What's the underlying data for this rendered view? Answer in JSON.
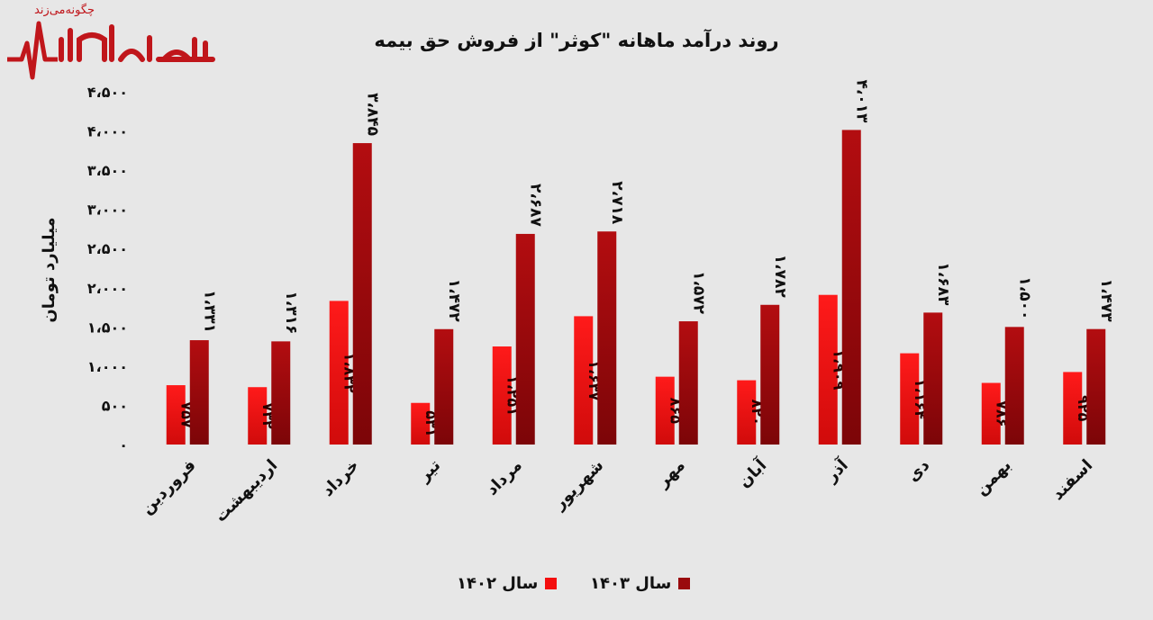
{
  "watermark": {
    "brand": "بورس بازار",
    "caption": "چگونه‌می‌زند"
  },
  "chart_data": {
    "type": "bar",
    "title": "روند درآمد ماهانه \"کوثر\" از فروش حق بیمه",
    "ylabel": "میلیارد تومان",
    "xlabel": "",
    "ylim": [
      0,
      4500
    ],
    "yticks": [
      0,
      500,
      1000,
      1500,
      2000,
      2500,
      3000,
      3500,
      4000,
      4500
    ],
    "ytick_labels": [
      "۰",
      "۵۰۰",
      "۱،۰۰۰",
      "۱،۵۰۰",
      "۲،۰۰۰",
      "۲،۵۰۰",
      "۳،۰۰۰",
      "۳،۵۰۰",
      "۴،۰۰۰",
      "۴،۵۰۰"
    ],
    "grid": false,
    "legend_position": "bottom",
    "categories": [
      "فروردین",
      "اردیبهشت",
      "خرداد",
      "تیر",
      "مرداد",
      "شهریور",
      "مهر",
      "آبان",
      "آذر",
      "دی",
      "بهمن",
      "اسفند"
    ],
    "series": [
      {
        "name": "سال ۱۴۰۲",
        "color": "#f40e0e",
        "values": [
          757,
          732,
          1832,
          531,
          1251,
          1637,
          865,
          820,
          1909,
          1164,
          786,
          925
        ],
        "labels": [
          "۷۵۷",
          "۷۳۲",
          "۱،۸۳۲",
          "۵۳۱",
          "۱،۲۵۱",
          "۱،۶۳۷",
          "۸۶۵",
          "۸۲۰",
          "۱،۹۰۹",
          "۱،۱۶۴",
          "۷۸۶",
          "۹۲۵"
        ]
      },
      {
        "name": "سال ۱۴۰۳",
        "color": "#9a0a0d",
        "values": [
          1331,
          1316,
          3845,
          1472,
          2687,
          2718,
          1572,
          1782,
          4013,
          1683,
          1500,
          1473
        ],
        "labels": [
          "۱،۳۳۱",
          "۱،۳۱۶",
          "۳،۸۴۵",
          "۱،۴۷۲",
          "۲،۶۸۷",
          "۲،۷۱۸",
          "۱،۵۷۲",
          "۱،۷۸۲",
          "۴،۰۱۳",
          "۱،۶۸۳",
          "۱،۵۰۰",
          "۱،۴۷۳"
        ]
      }
    ]
  }
}
